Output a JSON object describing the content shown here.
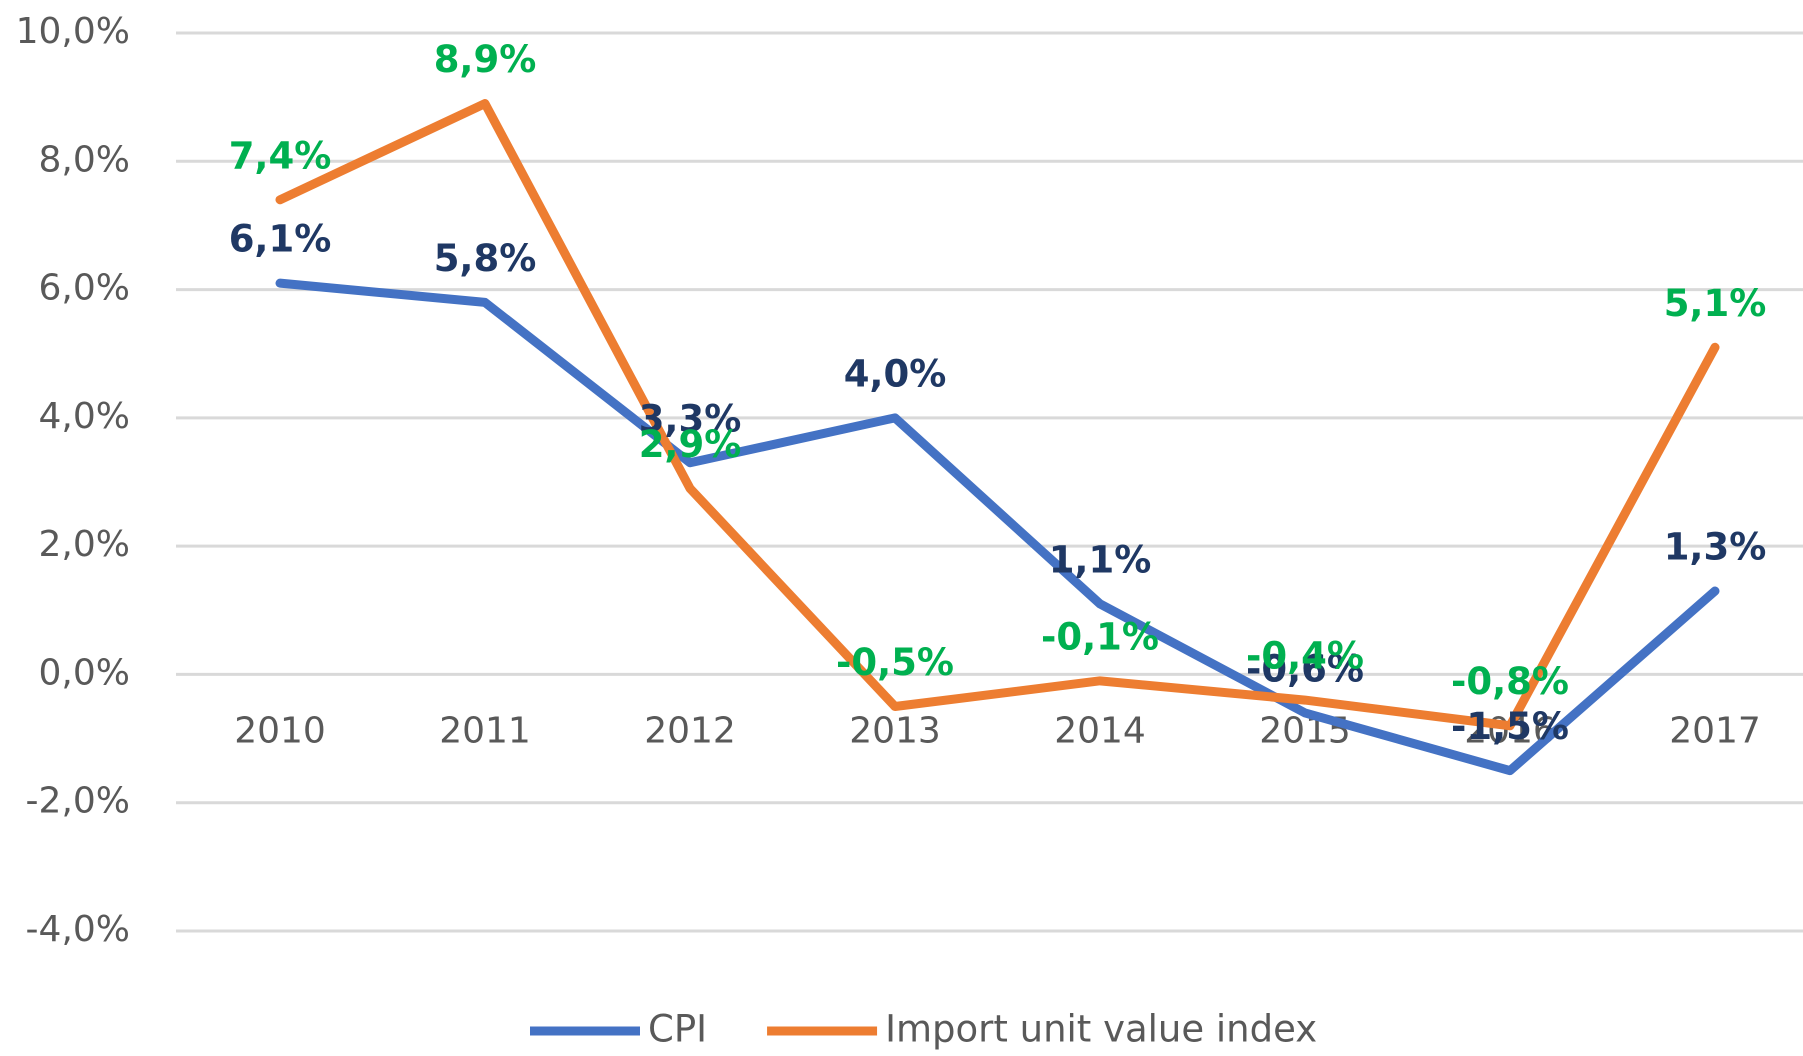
{
  "chart_data": {
    "type": "line",
    "categories": [
      "2010",
      "2011",
      "2012",
      "2013",
      "2014",
      "2015",
      "2016",
      "2017"
    ],
    "series": [
      {
        "name": "CPI",
        "color": "#4472c4",
        "label_color": "#1f3864",
        "values": [
          6.1,
          5.8,
          3.3,
          4.0,
          1.1,
          -0.6,
          -1.5,
          1.3
        ],
        "value_labels": [
          "6,1%",
          "5,8%",
          "3,3%",
          "4,0%",
          "1,1%",
          "-0,6%",
          "-1,5%",
          "1,3%"
        ]
      },
      {
        "name": "Import unit value index",
        "color": "#ed7d31",
        "label_color": "#00b050",
        "values": [
          7.4,
          8.9,
          2.9,
          -0.5,
          -0.1,
          -0.4,
          -0.8,
          5.1
        ],
        "value_labels": [
          "7,4%",
          "8,9%",
          "2,9%",
          "-0,5%",
          "-0,1%",
          "-0,4%",
          "-0,8%",
          "5,1%"
        ]
      }
    ],
    "ylim": [
      -4,
      10
    ],
    "yticks": [
      {
        "value": -4,
        "label": "-4,0%"
      },
      {
        "value": -2,
        "label": "-2,0%"
      },
      {
        "value": 0,
        "label": "0,0%"
      },
      {
        "value": 2,
        "label": "2,0%"
      },
      {
        "value": 4,
        "label": "4,0%"
      },
      {
        "value": 6,
        "label": "6,0%"
      },
      {
        "value": 8,
        "label": "8,0%"
      },
      {
        "value": 10,
        "label": "10,0%"
      }
    ],
    "grid": true,
    "legend": "bottom"
  }
}
